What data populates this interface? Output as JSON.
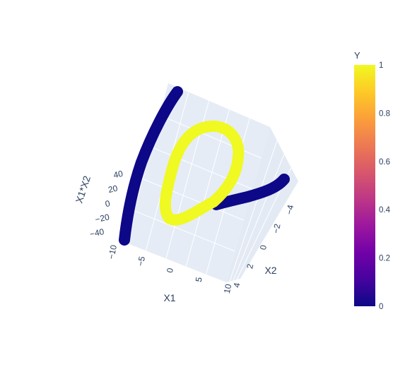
{
  "chart_data": {
    "type": "scatter3d",
    "colorscale": "plasma",
    "colorscale_stops": [
      "#0d0887",
      "#46039f",
      "#7201a8",
      "#9c179e",
      "#bd3786",
      "#d8576b",
      "#ed7953",
      "#fb9f3a",
      "#fdca26",
      "#f0f921"
    ],
    "axes": {
      "x": {
        "title": "X1",
        "ticks": [
          {
            "label": "−10",
            "value": -10
          },
          {
            "label": "−5",
            "value": -5
          },
          {
            "label": "0",
            "value": 0
          },
          {
            "label": "5",
            "value": 5
          },
          {
            "label": "10",
            "value": 10
          }
        ]
      },
      "y": {
        "title": "X2",
        "ticks": [
          {
            "label": "−4",
            "value": -4
          },
          {
            "label": "−2",
            "value": -2
          },
          {
            "label": "0",
            "value": 0
          },
          {
            "label": "2",
            "value": 2
          },
          {
            "label": "4",
            "value": 4
          }
        ]
      },
      "z": {
        "title": "X1*X2",
        "ticks": [
          {
            "label": "−40",
            "value": -40
          },
          {
            "label": "−20",
            "value": -20
          },
          {
            "label": "0",
            "value": 0
          },
          {
            "label": "20",
            "value": 20
          },
          {
            "label": "40",
            "value": 40
          }
        ]
      }
    },
    "colorbar": {
      "title": "Y",
      "ticks": [
        {
          "label": "0",
          "value": 0
        },
        {
          "label": "0.2",
          "value": 0.2
        },
        {
          "label": "0.4",
          "value": 0.4
        },
        {
          "label": "0.6",
          "value": 0.6
        },
        {
          "label": "0.8",
          "value": 0.8
        },
        {
          "label": "1",
          "value": 1
        }
      ]
    },
    "series": [
      {
        "y_value": 0,
        "color": "#0d0887",
        "shape": "arc along the X1≈−9 side, rising steeply in X1*X2"
      },
      {
        "y_value": 0,
        "color": "#0d0887",
        "shape": "short curved band near X2≈−4 to X2≈0"
      },
      {
        "y_value": 1,
        "color": "#f0f921",
        "shape": "closed teardrop loop around the center"
      }
    ]
  }
}
